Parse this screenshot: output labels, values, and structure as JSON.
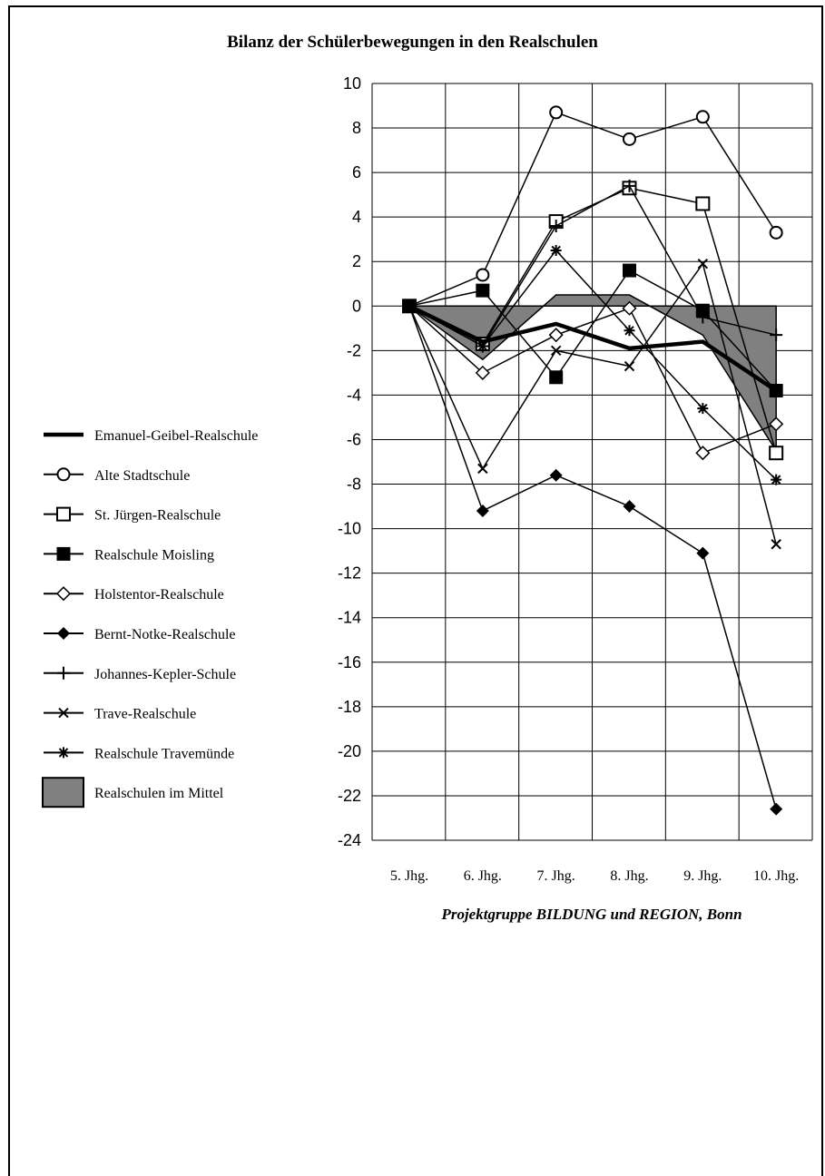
{
  "footer": {
    "source": "Projektgruppe BILDUNG und REGION, Bonn"
  },
  "chart_data": {
    "type": "line",
    "title": "Bilanz der Schülerbewegungen in den Realschulen",
    "categories": [
      "5. Jhg.",
      "6. Jhg.",
      "7. Jhg.",
      "8. Jhg.",
      "9. Jhg.",
      "10. Jhg."
    ],
    "ylim": [
      -24,
      10
    ],
    "yticks": [
      10,
      8,
      6,
      4,
      2,
      0,
      -2,
      -4,
      -6,
      -8,
      -10,
      -12,
      -14,
      -16,
      -18,
      -20,
      -22,
      -24
    ],
    "grid": true,
    "legend_position": "left",
    "area": {
      "name": "Realschulen im Mittel",
      "values": [
        0,
        -2.4,
        0.5,
        0.5,
        -1.3,
        -6.5
      ],
      "color": "#808080"
    },
    "series": [
      {
        "name": "Emanuel-Geibel-Realschule",
        "values": [
          0,
          -1.6,
          -0.8,
          -1.9,
          -1.6,
          -3.8
        ],
        "marker": "none",
        "bold": true
      },
      {
        "name": "Alte Stadtschule",
        "values": [
          0,
          1.4,
          8.7,
          7.5,
          8.5,
          3.3
        ],
        "marker": "circle-open"
      },
      {
        "name": "St. Jürgen-Realschule",
        "values": [
          0,
          -1.7,
          3.8,
          5.3,
          4.6,
          -6.6
        ],
        "marker": "square-open"
      },
      {
        "name": "Realschule Moisling",
        "values": [
          0,
          0.7,
          -3.2,
          1.6,
          -0.2,
          -3.8
        ],
        "marker": "square-filled"
      },
      {
        "name": "Holstentor-Realschule",
        "values": [
          0,
          -3.0,
          -1.3,
          -0.1,
          -6.6,
          -5.3
        ],
        "marker": "diamond-open"
      },
      {
        "name": "Bernt-Notke-Realschule",
        "values": [
          0,
          -9.2,
          -7.6,
          -9.0,
          -11.1,
          -22.6
        ],
        "marker": "diamond-filled"
      },
      {
        "name": "Johannes-Kepler-Schule",
        "values": [
          0,
          -1.8,
          3.6,
          5.4,
          -0.5,
          -1.3
        ],
        "marker": "plus"
      },
      {
        "name": "Trave-Realschule",
        "values": [
          0,
          -7.3,
          -2.0,
          -2.7,
          1.9,
          -10.7
        ],
        "marker": "x"
      },
      {
        "name": "Realschule Travemünde",
        "values": [
          0,
          -1.8,
          2.5,
          -1.1,
          -4.6,
          -7.8
        ],
        "marker": "asterisk"
      }
    ]
  }
}
